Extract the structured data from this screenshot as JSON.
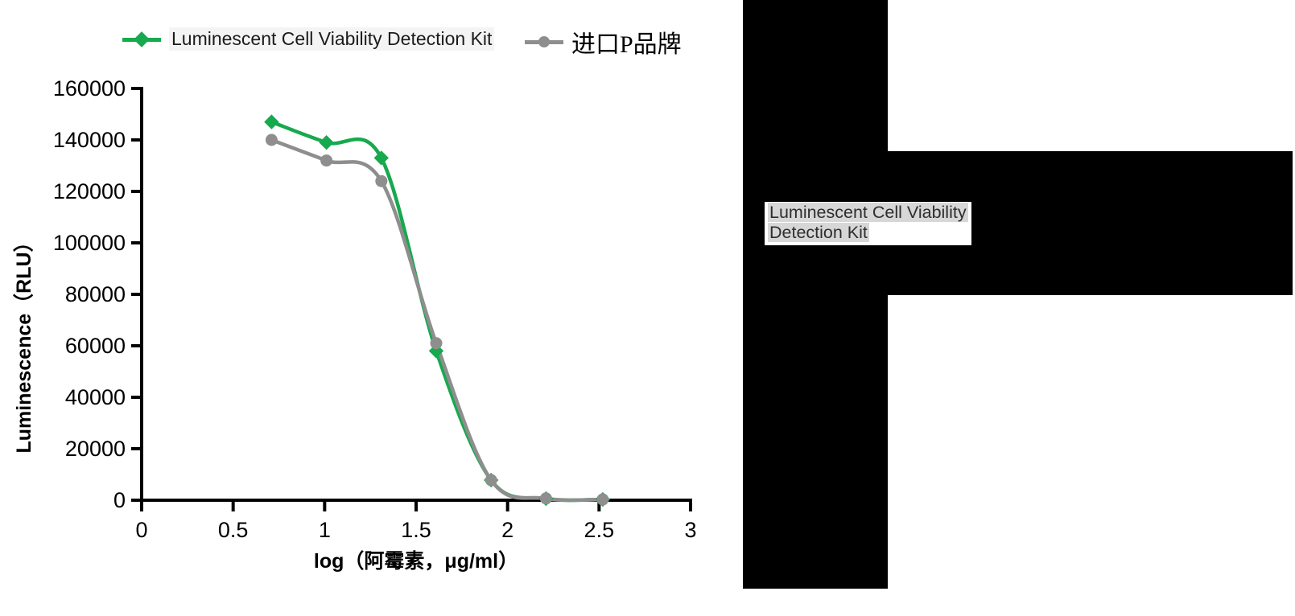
{
  "chart_data": {
    "type": "line",
    "title": "",
    "xlabel": "log（阿霉素，μg/ml）",
    "ylabel": "Luminescence（RLU）",
    "xlim": [
      0,
      3
    ],
    "ylim": [
      0,
      160000
    ],
    "xticks": [
      0,
      0.5,
      1,
      1.5,
      2,
      2.5,
      3
    ],
    "yticks": [
      0,
      20000,
      40000,
      60000,
      80000,
      100000,
      120000,
      140000,
      160000
    ],
    "grid": false,
    "legend_position": "top",
    "x": [
      0.71,
      1.01,
      1.31,
      1.61,
      1.91,
      2.21,
      2.52
    ],
    "series": [
      {
        "name": "Luminescent Cell Viability Detection Kit",
        "color": "#17a94e",
        "marker": "diamond",
        "values": [
          147000,
          139000,
          133000,
          58000,
          7800,
          600,
          300
        ]
      },
      {
        "name": "进口P品牌",
        "color": "#8e8e8e",
        "marker": "circle",
        "values": [
          140000,
          132000,
          124000,
          61000,
          7800,
          700,
          300
        ]
      }
    ],
    "axis_color": "#000000"
  },
  "right_panel": {
    "label_line1": "Luminescent Cell Viability",
    "label_line2": "Detection Kit",
    "block_color": "#000000",
    "label_bg": "#ffffff",
    "label_highlight": "#d7d7d7",
    "label_text_color": "#2e2e2e"
  }
}
